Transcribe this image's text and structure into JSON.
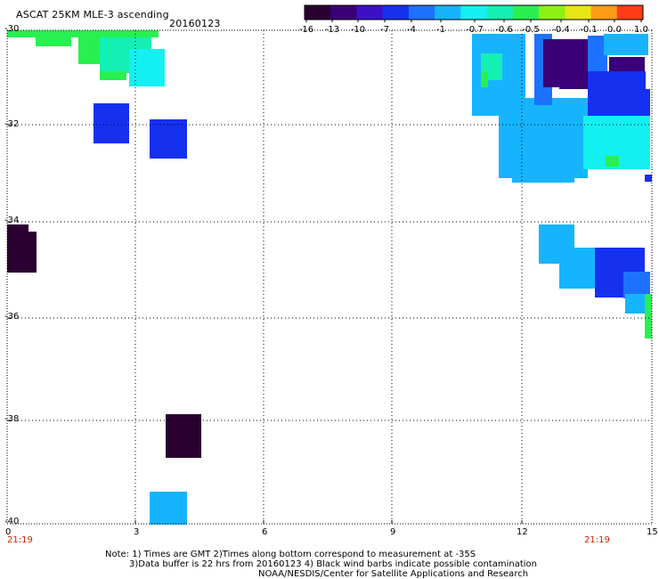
{
  "header": {
    "title": "ASCAT 25KM MLE-3 ascending",
    "date": "20160123"
  },
  "colorbar": {
    "labels": [
      "-16",
      "-13",
      "-10",
      "-7",
      "-4",
      "-1",
      "-0.7",
      "-0.6",
      "-0.5",
      "-0.4",
      "-0.1",
      "0.0",
      "1.0"
    ],
    "colors": [
      "#2a0030",
      "#3a0078",
      "#3d10c8",
      "#1630f0",
      "#1c72ff",
      "#16b4ff",
      "#14f0f0",
      "#14f0b4",
      "#28f050",
      "#8cf014",
      "#e6e614",
      "#ff9c14",
      "#ff3c14"
    ]
  },
  "axes": {
    "y_labels": [
      "-30",
      "-32",
      "-34",
      "-36",
      "-38",
      "-40"
    ],
    "x_labels": [
      "0",
      "3",
      "6",
      "9",
      "12",
      "15"
    ],
    "time_left": "21:19",
    "time_right": "21:19"
  },
  "notes": {
    "line1": "Note: 1) Times are GMT 2)Times along bottom correspond to measurement at -35S",
    "line2": "3)Data buffer is 22 hrs from 20160123 4) Black wind barbs indicate possible contamination",
    "line3": "NOAA/NESDIS/Center for Satellite Applications and Research"
  },
  "legend_colors": {
    "dark_purple": "#2a0030",
    "purple": "#3a0078",
    "blue": "#1630f0",
    "mid_blue": "#1c72ff",
    "sky_blue": "#16b4ff",
    "cyan": "#14f0f0",
    "aqua_green": "#14f0b4",
    "green": "#28f050"
  }
}
